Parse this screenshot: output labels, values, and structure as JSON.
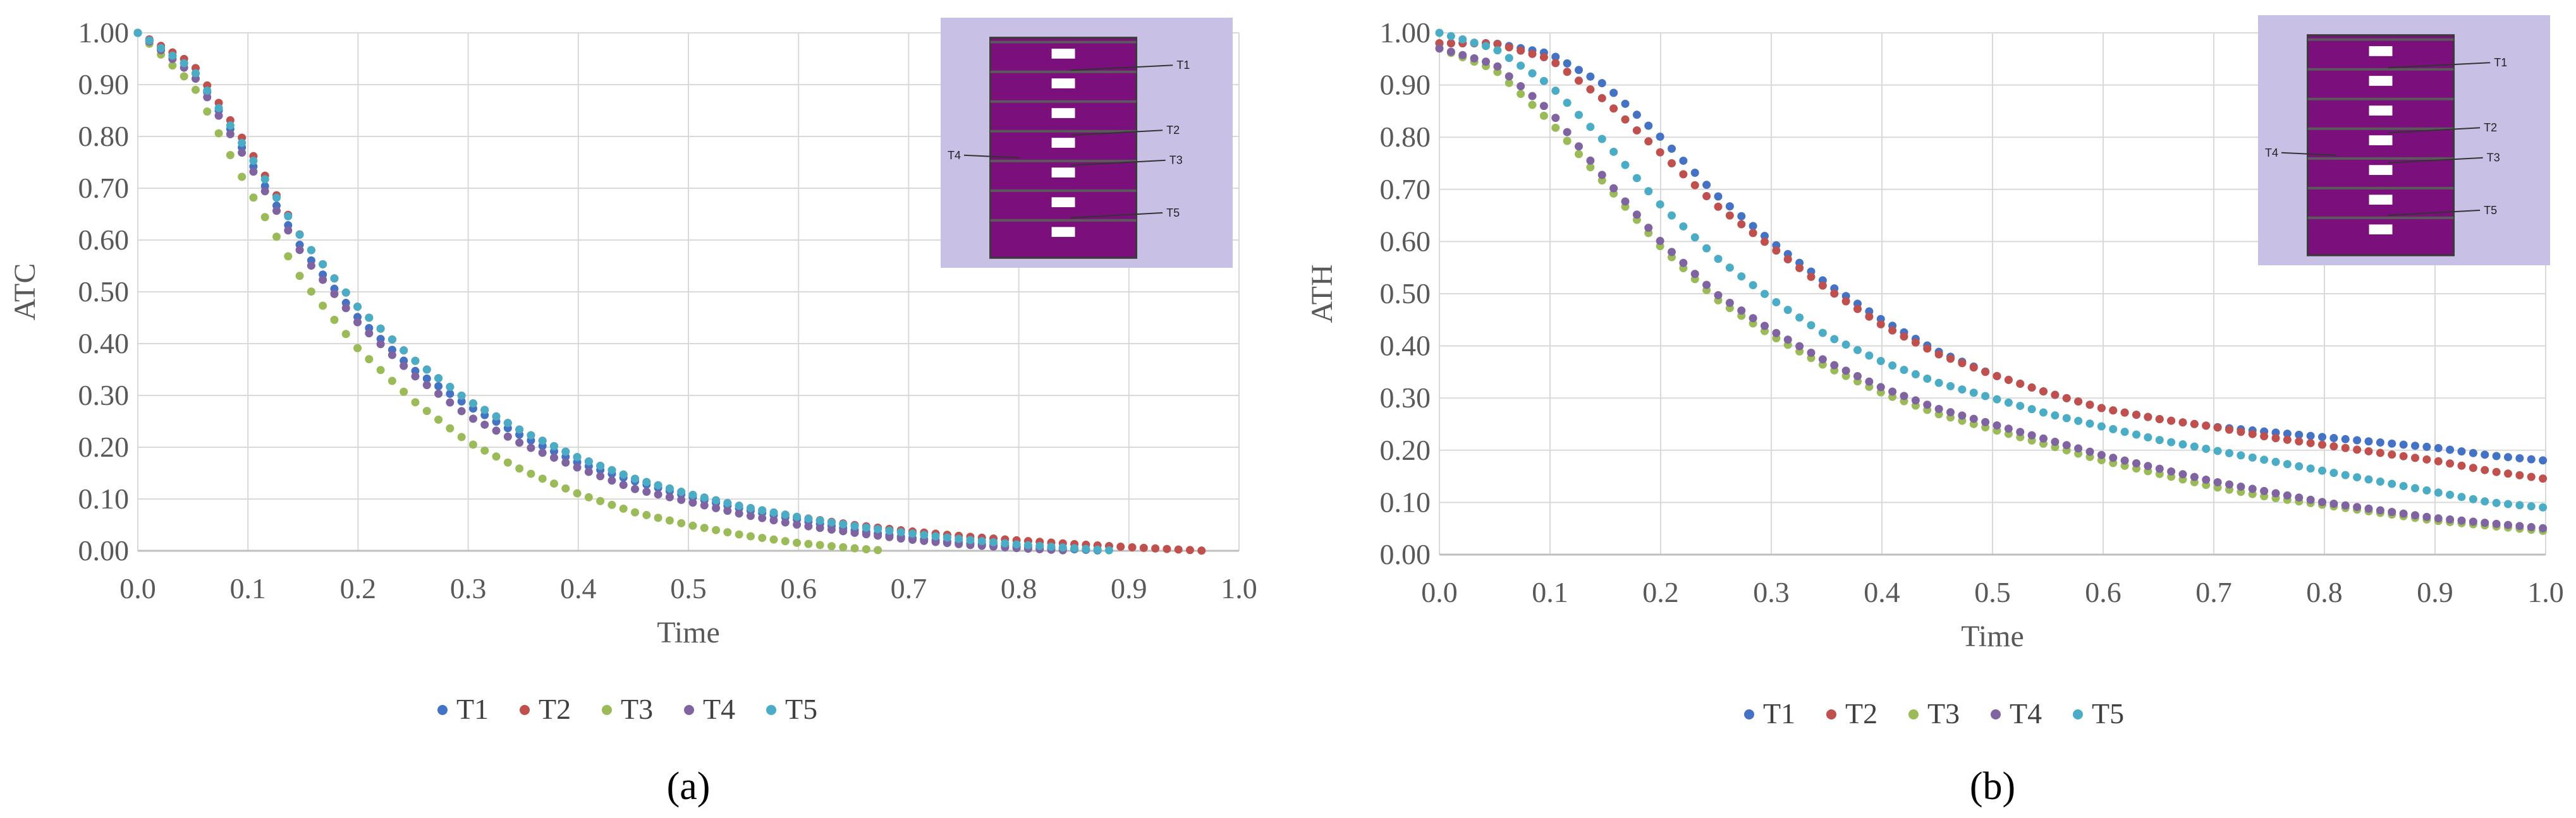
{
  "colors": {
    "T1": "#4472c4",
    "T2": "#c0504d",
    "T3": "#9bbb59",
    "T4": "#8064a2",
    "T5": "#4bacc6",
    "inset_bg": "#c9c0e6",
    "cabinet": "#7b0f7b"
  },
  "chart_data": [
    {
      "type": "scatter",
      "panel_label": "(a)",
      "ylabel": "ATC",
      "xlabel": "Time",
      "xlim": [
        0,
        1
      ],
      "ylim": [
        0,
        1
      ],
      "xticks": [
        "0.0",
        "0.1",
        "0.2",
        "0.3",
        "0.4",
        "0.5",
        "0.6",
        "0.7",
        "0.8",
        "0.9",
        "1.0"
      ],
      "yticks": [
        "0.00",
        "0.10",
        "0.20",
        "0.30",
        "0.40",
        "0.50",
        "0.60",
        "0.70",
        "0.80",
        "0.90",
        "1.00"
      ],
      "legend": [
        "T1",
        "T2",
        "T3",
        "T4",
        "T5"
      ],
      "inset_labels": [
        "T1",
        "T2",
        "T3",
        "T4",
        "T5"
      ],
      "series": [
        {
          "name": "T1",
          "x": [
            0.0,
            0.05,
            0.1,
            0.15,
            0.2,
            0.25,
            0.3,
            0.35,
            0.4,
            0.45,
            0.5,
            0.55,
            0.6,
            0.65,
            0.7,
            0.75,
            0.8,
            0.85,
            0.88
          ],
          "y": [
            1.0,
            0.93,
            0.76,
            0.58,
            0.45,
            0.35,
            0.28,
            0.22,
            0.17,
            0.135,
            0.105,
            0.08,
            0.06,
            0.04,
            0.025,
            0.015,
            0.008,
            0.003,
            0.0
          ]
        },
        {
          "name": "T2",
          "x": [
            0.0,
            0.05,
            0.1,
            0.15,
            0.2,
            0.25,
            0.3,
            0.35,
            0.4,
            0.45,
            0.5,
            0.55,
            0.6,
            0.65,
            0.7,
            0.75,
            0.8,
            0.85,
            0.9,
            0.97
          ],
          "y": [
            1.0,
            0.94,
            0.78,
            0.6,
            0.47,
            0.37,
            0.29,
            0.23,
            0.18,
            0.14,
            0.11,
            0.085,
            0.065,
            0.05,
            0.038,
            0.028,
            0.02,
            0.013,
            0.007,
            0.0
          ]
        },
        {
          "name": "T3",
          "x": [
            0.0,
            0.05,
            0.1,
            0.15,
            0.2,
            0.25,
            0.3,
            0.35,
            0.4,
            0.45,
            0.5,
            0.55,
            0.6,
            0.65,
            0.68
          ],
          "y": [
            1.0,
            0.9,
            0.7,
            0.52,
            0.39,
            0.29,
            0.21,
            0.155,
            0.11,
            0.075,
            0.05,
            0.03,
            0.015,
            0.005,
            0.0
          ]
        },
        {
          "name": "T4",
          "x": [
            0.0,
            0.05,
            0.1,
            0.15,
            0.2,
            0.25,
            0.3,
            0.35,
            0.4,
            0.45,
            0.5,
            0.55,
            0.6,
            0.65,
            0.7,
            0.75,
            0.8,
            0.85
          ],
          "y": [
            1.0,
            0.92,
            0.75,
            0.57,
            0.44,
            0.34,
            0.26,
            0.205,
            0.16,
            0.12,
            0.095,
            0.07,
            0.05,
            0.035,
            0.022,
            0.012,
            0.005,
            0.0
          ]
        },
        {
          "name": "T5",
          "x": [
            0.0,
            0.05,
            0.1,
            0.15,
            0.2,
            0.25,
            0.3,
            0.35,
            0.4,
            0.45,
            0.5,
            0.55,
            0.6,
            0.65,
            0.7,
            0.75,
            0.8,
            0.85,
            0.89
          ],
          "y": [
            1.0,
            0.93,
            0.77,
            0.6,
            0.47,
            0.37,
            0.29,
            0.23,
            0.18,
            0.14,
            0.11,
            0.085,
            0.065,
            0.048,
            0.034,
            0.022,
            0.012,
            0.005,
            0.0
          ]
        }
      ]
    },
    {
      "type": "scatter",
      "panel_label": "(b)",
      "ylabel": "ATH",
      "xlabel": "Time",
      "xlim": [
        0,
        1
      ],
      "ylim": [
        0,
        1
      ],
      "xticks": [
        "0.0",
        "0.1",
        "0.2",
        "0.3",
        "0.4",
        "0.5",
        "0.6",
        "0.7",
        "0.8",
        "0.9",
        "1.0"
      ],
      "yticks": [
        "0.00",
        "0.10",
        "0.20",
        "0.30",
        "0.40",
        "0.50",
        "0.60",
        "0.70",
        "0.80",
        "0.90",
        "1.00"
      ],
      "legend": [
        "T1",
        "T2",
        "T3",
        "T4",
        "T5"
      ],
      "inset_labels": [
        "T1",
        "T2",
        "T3",
        "T4",
        "T5"
      ],
      "series": [
        {
          "name": "T1",
          "x": [
            0.0,
            0.05,
            0.1,
            0.15,
            0.2,
            0.25,
            0.3,
            0.35,
            0.4,
            0.45,
            0.5,
            0.55,
            0.6,
            0.65,
            0.7,
            0.75,
            0.8,
            0.85,
            0.9,
            0.95,
            1.0
          ],
          "y": [
            0.98,
            0.98,
            0.96,
            0.9,
            0.8,
            0.69,
            0.6,
            0.52,
            0.45,
            0.39,
            0.345,
            0.31,
            0.28,
            0.26,
            0.245,
            0.235,
            0.225,
            0.215,
            0.205,
            0.19,
            0.18
          ]
        },
        {
          "name": "T2",
          "x": [
            0.0,
            0.05,
            0.1,
            0.15,
            0.2,
            0.25,
            0.3,
            0.35,
            0.4,
            0.45,
            0.5,
            0.55,
            0.6,
            0.65,
            0.7,
            0.75,
            0.8,
            0.85,
            0.9,
            0.95,
            1.0
          ],
          "y": [
            0.98,
            0.98,
            0.95,
            0.87,
            0.77,
            0.67,
            0.59,
            0.51,
            0.44,
            0.385,
            0.345,
            0.31,
            0.28,
            0.26,
            0.245,
            0.225,
            0.21,
            0.195,
            0.18,
            0.16,
            0.145
          ]
        },
        {
          "name": "T3",
          "x": [
            0.0,
            0.05,
            0.1,
            0.15,
            0.2,
            0.25,
            0.3,
            0.35,
            0.4,
            0.45,
            0.5,
            0.55,
            0.6,
            0.65,
            0.7,
            0.75,
            0.8,
            0.85,
            0.9,
            0.95,
            1.0
          ],
          "y": [
            0.97,
            0.93,
            0.83,
            0.71,
            0.59,
            0.49,
            0.42,
            0.36,
            0.31,
            0.27,
            0.24,
            0.21,
            0.18,
            0.155,
            0.13,
            0.11,
            0.095,
            0.08,
            0.065,
            0.055,
            0.045
          ]
        },
        {
          "name": "T4",
          "x": [
            0.0,
            0.05,
            0.1,
            0.15,
            0.2,
            0.25,
            0.3,
            0.35,
            0.4,
            0.45,
            0.5,
            0.55,
            0.6,
            0.65,
            0.7,
            0.75,
            0.8,
            0.85,
            0.9,
            0.95,
            1.0
          ],
          "y": [
            0.97,
            0.94,
            0.85,
            0.72,
            0.6,
            0.5,
            0.43,
            0.37,
            0.32,
            0.28,
            0.25,
            0.22,
            0.19,
            0.165,
            0.14,
            0.12,
            0.1,
            0.085,
            0.07,
            0.06,
            0.05
          ]
        },
        {
          "name": "T5",
          "x": [
            0.0,
            0.05,
            0.1,
            0.15,
            0.2,
            0.25,
            0.3,
            0.35,
            0.4,
            0.45,
            0.5,
            0.55,
            0.6,
            0.65,
            0.7,
            0.75,
            0.8,
            0.85,
            0.9,
            0.95,
            1.0
          ],
          "y": [
            1.0,
            0.97,
            0.9,
            0.79,
            0.67,
            0.57,
            0.49,
            0.42,
            0.37,
            0.33,
            0.3,
            0.27,
            0.245,
            0.22,
            0.2,
            0.18,
            0.16,
            0.14,
            0.12,
            0.1,
            0.09
          ]
        }
      ]
    }
  ]
}
